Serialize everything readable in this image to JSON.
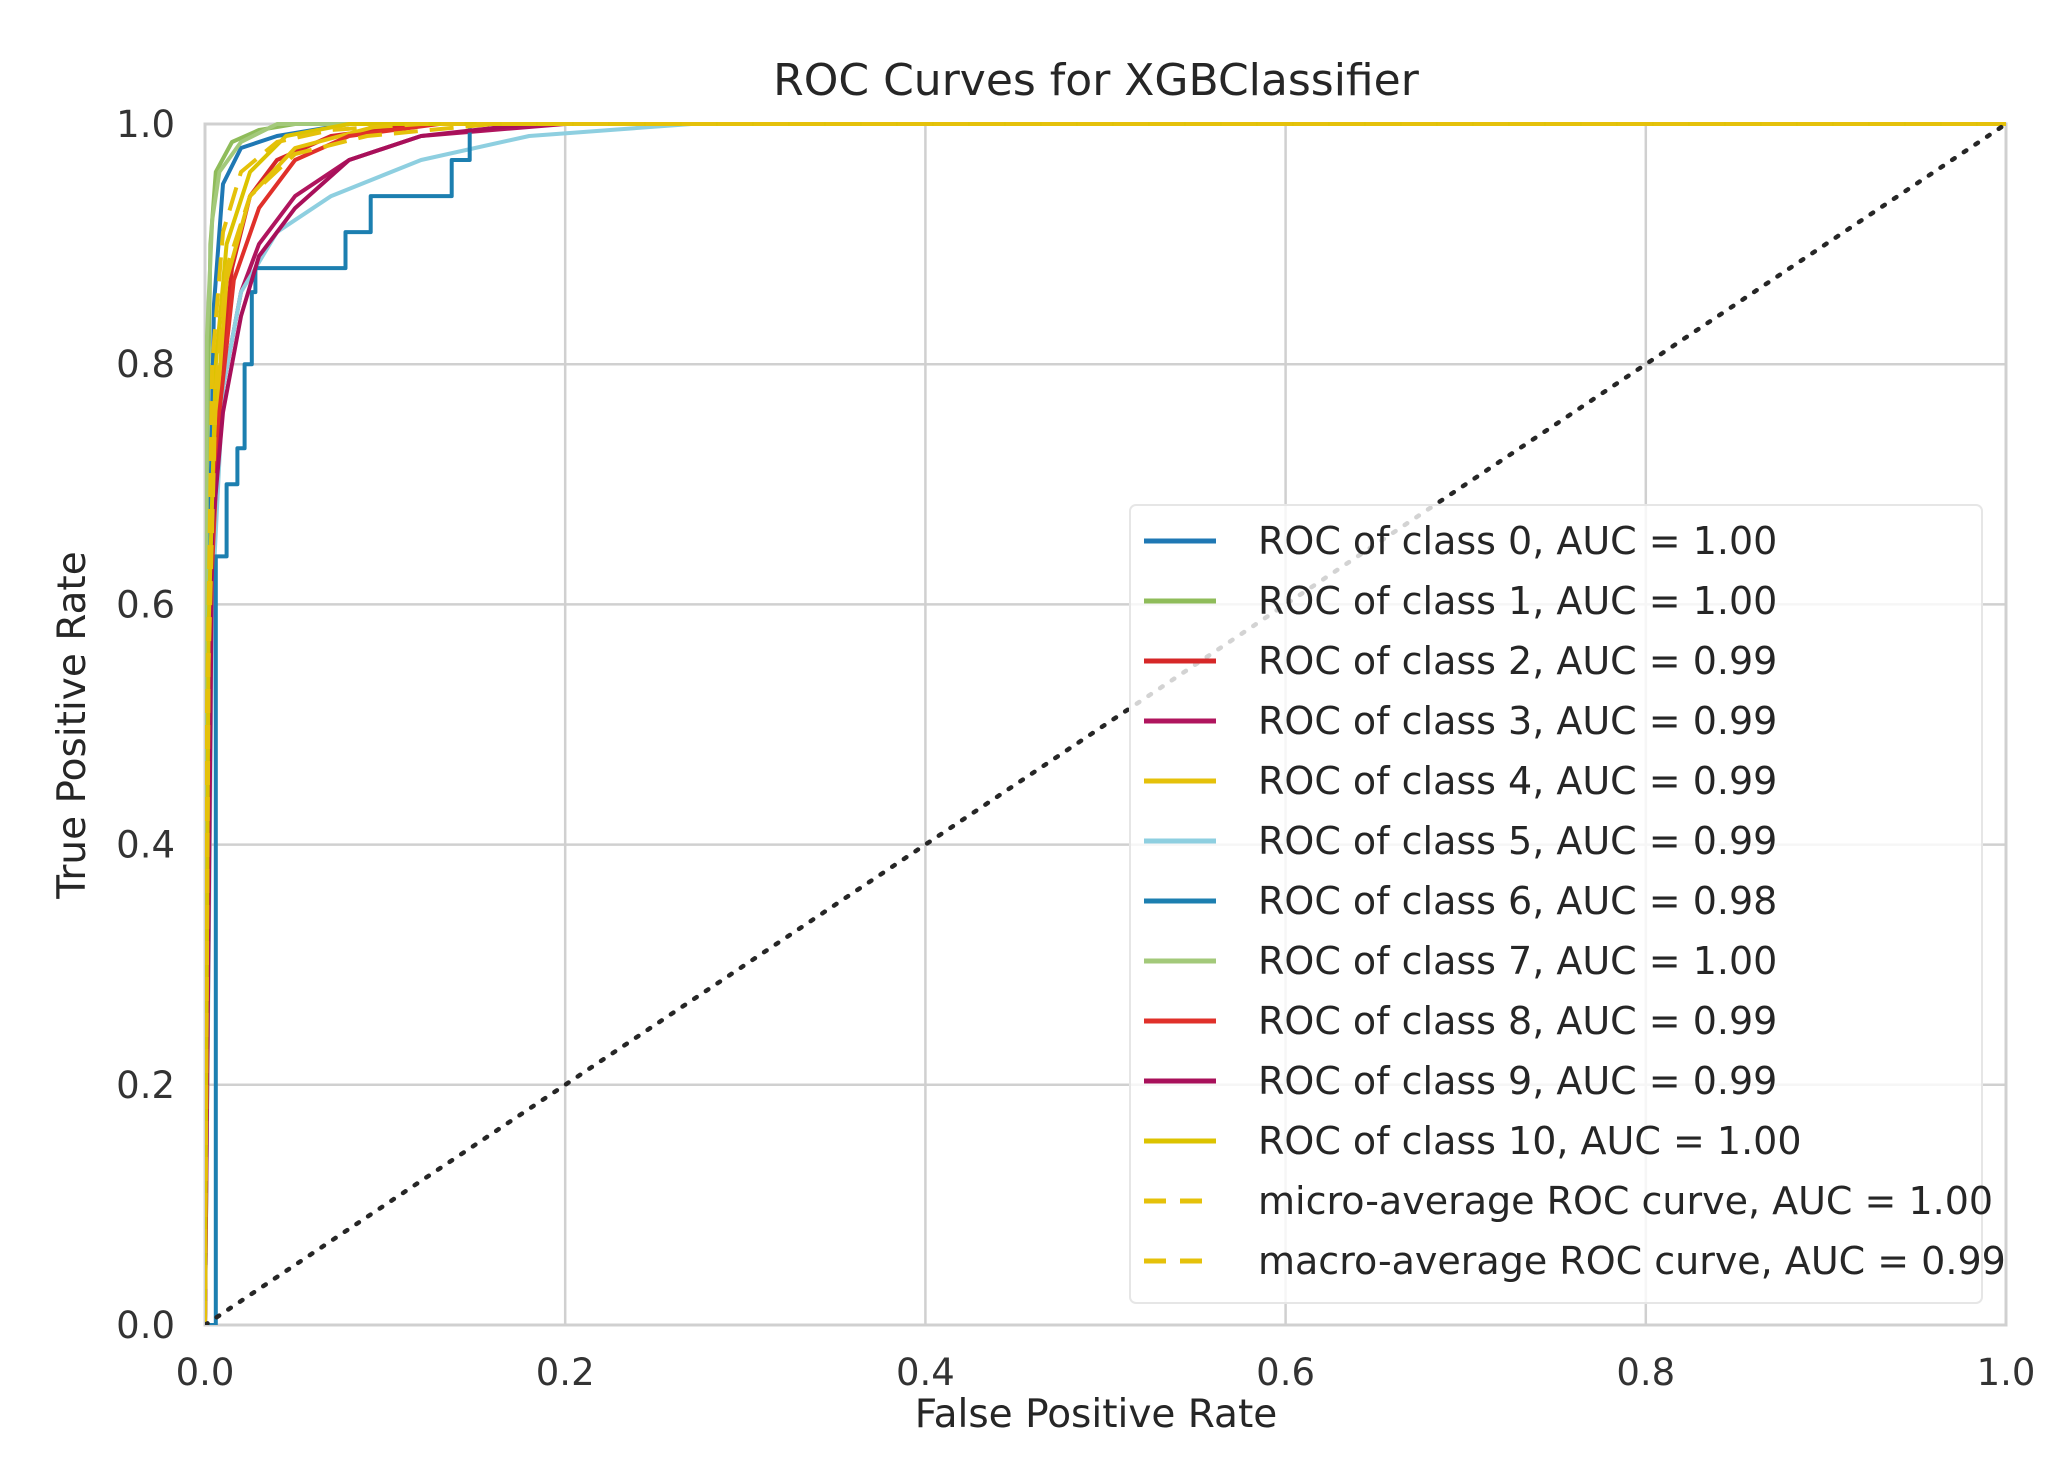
{
  "chart_data": {
    "type": "line",
    "title": "ROC Curves for XGBClassifier",
    "xlabel": "False Positive Rate",
    "ylabel": "True Positive Rate",
    "xlim": [
      0.0,
      1.0
    ],
    "ylim": [
      0.0,
      1.0
    ],
    "x_ticks": [
      "0.0",
      "0.2",
      "0.4",
      "0.6",
      "0.8",
      "1.0"
    ],
    "y_ticks": [
      "0.0",
      "0.2",
      "0.4",
      "0.6",
      "0.8",
      "1.0"
    ],
    "grid": true,
    "legend_position": "lower-right",
    "series": [
      {
        "name": "ROC of class 0, AUC = 1.00",
        "color": "#1f78b4",
        "style": "solid",
        "points": [
          [
            0,
            0
          ],
          [
            0.002,
            0.6
          ],
          [
            0.005,
            0.85
          ],
          [
            0.01,
            0.95
          ],
          [
            0.02,
            0.98
          ],
          [
            0.04,
            0.99
          ],
          [
            0.08,
            1.0
          ],
          [
            1,
            1
          ]
        ]
      },
      {
        "name": "ROC of class 1, AUC = 1.00",
        "color": "#8fbc5a",
        "style": "solid",
        "points": [
          [
            0,
            0
          ],
          [
            0.001,
            0.7
          ],
          [
            0.003,
            0.9
          ],
          [
            0.006,
            0.96
          ],
          [
            0.015,
            0.985
          ],
          [
            0.03,
            0.995
          ],
          [
            0.05,
            1.0
          ],
          [
            1,
            1
          ]
        ]
      },
      {
        "name": "ROC of class 2, AUC = 0.99",
        "color": "#d62728",
        "style": "solid",
        "points": [
          [
            0,
            0
          ],
          [
            0.003,
            0.62
          ],
          [
            0.008,
            0.78
          ],
          [
            0.015,
            0.88
          ],
          [
            0.025,
            0.94
          ],
          [
            0.04,
            0.97
          ],
          [
            0.07,
            0.99
          ],
          [
            0.12,
            1.0
          ],
          [
            1,
            1
          ]
        ]
      },
      {
        "name": "ROC of class 3, AUC = 0.99",
        "color": "#b0155e",
        "style": "solid",
        "points": [
          [
            0,
            0
          ],
          [
            0.004,
            0.65
          ],
          [
            0.01,
            0.78
          ],
          [
            0.02,
            0.86
          ],
          [
            0.03,
            0.9
          ],
          [
            0.05,
            0.94
          ],
          [
            0.08,
            0.97
          ],
          [
            0.12,
            0.99
          ],
          [
            0.2,
            1.0
          ],
          [
            1,
            1
          ]
        ]
      },
      {
        "name": "ROC of class 4, AUC = 0.99",
        "color": "#e5c10a",
        "style": "solid",
        "points": [
          [
            0,
            0
          ],
          [
            0.002,
            0.55
          ],
          [
            0.006,
            0.75
          ],
          [
            0.012,
            0.87
          ],
          [
            0.025,
            0.94
          ],
          [
            0.05,
            0.98
          ],
          [
            0.1,
            1.0
          ],
          [
            1,
            1
          ]
        ]
      },
      {
        "name": "ROC of class 5, AUC = 0.99",
        "color": "#8ecfe0",
        "style": "solid",
        "points": [
          [
            0,
            0
          ],
          [
            0.004,
            0.6
          ],
          [
            0.01,
            0.78
          ],
          [
            0.02,
            0.86
          ],
          [
            0.04,
            0.91
          ],
          [
            0.07,
            0.94
          ],
          [
            0.12,
            0.97
          ],
          [
            0.18,
            0.99
          ],
          [
            0.27,
            1.0
          ],
          [
            1,
            1
          ]
        ]
      },
      {
        "name": "ROC of class 6, AUC = 0.98",
        "color": "#1c7fb0",
        "style": "solid",
        "points": [
          [
            0,
            0
          ],
          [
            0.006,
            0.0
          ],
          [
            0.006,
            0.64
          ],
          [
            0.012,
            0.64
          ],
          [
            0.012,
            0.7
          ],
          [
            0.018,
            0.7
          ],
          [
            0.018,
            0.73
          ],
          [
            0.022,
            0.73
          ],
          [
            0.022,
            0.8
          ],
          [
            0.026,
            0.8
          ],
          [
            0.026,
            0.86
          ],
          [
            0.028,
            0.86
          ],
          [
            0.028,
            0.88
          ],
          [
            0.078,
            0.88
          ],
          [
            0.078,
            0.91
          ],
          [
            0.092,
            0.91
          ],
          [
            0.092,
            0.94
          ],
          [
            0.137,
            0.94
          ],
          [
            0.137,
            0.97
          ],
          [
            0.147,
            0.97
          ],
          [
            0.147,
            1.0
          ],
          [
            1,
            1
          ]
        ]
      },
      {
        "name": "ROC of class 7, AUC = 1.00",
        "color": "#a3c97a",
        "style": "solid",
        "points": [
          [
            0,
            0
          ],
          [
            0.001,
            0.82
          ],
          [
            0.004,
            0.92
          ],
          [
            0.008,
            0.96
          ],
          [
            0.02,
            0.985
          ],
          [
            0.04,
            1.0
          ],
          [
            1,
            1
          ]
        ]
      },
      {
        "name": "ROC of class 8, AUC = 0.99",
        "color": "#e0302a",
        "style": "solid",
        "points": [
          [
            0,
            0
          ],
          [
            0.003,
            0.6
          ],
          [
            0.008,
            0.76
          ],
          [
            0.016,
            0.87
          ],
          [
            0.03,
            0.93
          ],
          [
            0.05,
            0.97
          ],
          [
            0.08,
            0.99
          ],
          [
            0.13,
            1.0
          ],
          [
            1,
            1
          ]
        ]
      },
      {
        "name": "ROC of class 9, AUC = 0.99",
        "color": "#a8105a",
        "style": "solid",
        "points": [
          [
            0,
            0
          ],
          [
            0.004,
            0.66
          ],
          [
            0.01,
            0.76
          ],
          [
            0.02,
            0.84
          ],
          [
            0.03,
            0.89
          ],
          [
            0.05,
            0.93
          ],
          [
            0.08,
            0.97
          ],
          [
            0.12,
            0.99
          ],
          [
            0.18,
            1.0
          ],
          [
            1,
            1
          ]
        ]
      },
      {
        "name": "ROC of class 10, AUC = 1.00",
        "color": "#dcc300",
        "style": "solid",
        "points": [
          [
            0,
            0
          ],
          [
            0.002,
            0.58
          ],
          [
            0.006,
            0.8
          ],
          [
            0.012,
            0.9
          ],
          [
            0.025,
            0.96
          ],
          [
            0.045,
            0.99
          ],
          [
            0.08,
            1.0
          ],
          [
            1,
            1
          ]
        ]
      },
      {
        "name": "micro-average ROC curve, AUC = 1.00",
        "color": "#e5c10a",
        "style": "dashed",
        "points": [
          [
            0,
            0
          ],
          [
            0.001,
            0.5
          ],
          [
            0.004,
            0.8
          ],
          [
            0.01,
            0.91
          ],
          [
            0.02,
            0.96
          ],
          [
            0.04,
            0.985
          ],
          [
            0.07,
            0.995
          ],
          [
            0.12,
            1.0
          ],
          [
            1,
            1
          ]
        ]
      },
      {
        "name": "macro-average ROC curve, AUC = 0.99",
        "color": "#e5c10a",
        "style": "dashed",
        "points": [
          [
            0,
            0
          ],
          [
            0.002,
            0.55
          ],
          [
            0.006,
            0.78
          ],
          [
            0.012,
            0.88
          ],
          [
            0.025,
            0.94
          ],
          [
            0.05,
            0.975
          ],
          [
            0.09,
            0.99
          ],
          [
            0.16,
            1.0
          ],
          [
            1,
            1
          ]
        ]
      }
    ],
    "reference_line": {
      "points": [
        [
          0,
          0
        ],
        [
          1,
          1
        ]
      ],
      "color": "#262626",
      "style": "dotted"
    }
  }
}
